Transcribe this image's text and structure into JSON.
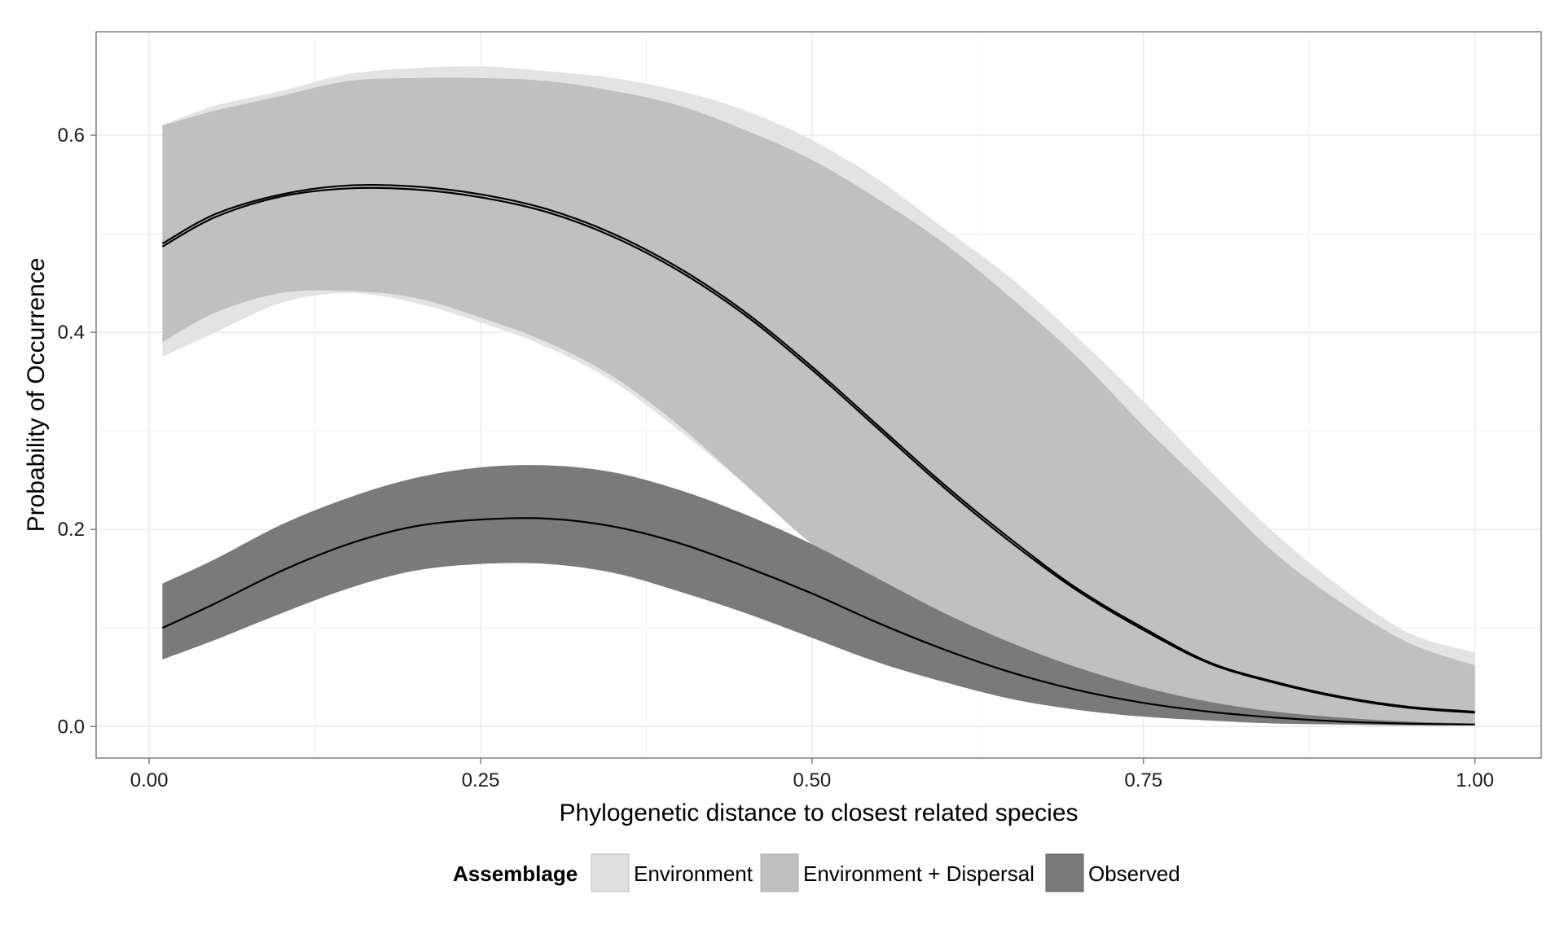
{
  "chart_data": {
    "type": "area",
    "xlabel": "Phylogenetic distance to closest related species",
    "ylabel": "Probability of Occurrence",
    "xlim": [
      -0.04,
      1.05
    ],
    "ylim": [
      -0.032,
      0.705
    ],
    "x_ticks": [
      "0.00",
      "0.25",
      "0.50",
      "0.75",
      "1.00"
    ],
    "x_tick_values": [
      0,
      0.25,
      0.5,
      0.75,
      1.0
    ],
    "y_ticks": [
      "0.0",
      "0.2",
      "0.4",
      "0.6"
    ],
    "y_tick_values": [
      0,
      0.2,
      0.4,
      0.6
    ],
    "grid": true,
    "legend": {
      "title": "Assemblage",
      "position": "bottom",
      "entries": [
        {
          "label": "Environment",
          "color": "#e0e0e0"
        },
        {
          "label": "Environment + Dispersal",
          "color": "#c0c0c0"
        },
        {
          "label": "Observed",
          "color": "#7a7a7a"
        }
      ]
    },
    "series": [
      {
        "name": "Environment",
        "fill_color": "#e3e3e3",
        "x": [
          0.01,
          0.05,
          0.1,
          0.15,
          0.2,
          0.25,
          0.3,
          0.35,
          0.4,
          0.45,
          0.5,
          0.55,
          0.6,
          0.65,
          0.7,
          0.75,
          0.8,
          0.85,
          0.9,
          0.95,
          1.0
        ],
        "mean": [
          0.49,
          0.52,
          0.54,
          0.549,
          0.548,
          0.54,
          0.525,
          0.5,
          0.465,
          0.42,
          0.365,
          0.305,
          0.245,
          0.19,
          0.14,
          0.1,
          0.065,
          0.045,
          0.03,
          0.02,
          0.015
        ],
        "lower": [
          0.375,
          0.4,
          0.43,
          0.44,
          0.43,
          0.41,
          0.385,
          0.35,
          0.3,
          0.245,
          0.185,
          0.14,
          0.095,
          0.065,
          0.045,
          0.03,
          0.018,
          0.012,
          0.007,
          0.004,
          0.003
        ],
        "upper": [
          0.61,
          0.63,
          0.645,
          0.662,
          0.668,
          0.67,
          0.665,
          0.658,
          0.645,
          0.625,
          0.595,
          0.555,
          0.505,
          0.455,
          0.395,
          0.33,
          0.26,
          0.195,
          0.14,
          0.095,
          0.075
        ]
      },
      {
        "name": "Environment + Dispersal",
        "fill_color": "#c0c0c0",
        "x": [
          0.01,
          0.05,
          0.1,
          0.15,
          0.2,
          0.25,
          0.3,
          0.35,
          0.4,
          0.45,
          0.5,
          0.55,
          0.6,
          0.65,
          0.7,
          0.75,
          0.8,
          0.85,
          0.9,
          0.95,
          1.0
        ],
        "mean": [
          0.487,
          0.517,
          0.538,
          0.546,
          0.545,
          0.537,
          0.522,
          0.497,
          0.462,
          0.417,
          0.362,
          0.302,
          0.242,
          0.187,
          0.138,
          0.098,
          0.064,
          0.044,
          0.029,
          0.019,
          0.014
        ],
        "lower": [
          0.39,
          0.42,
          0.44,
          0.442,
          0.435,
          0.415,
          0.39,
          0.355,
          0.305,
          0.245,
          0.185,
          0.14,
          0.095,
          0.065,
          0.045,
          0.03,
          0.018,
          0.012,
          0.007,
          0.004,
          0.003
        ],
        "upper": [
          0.61,
          0.625,
          0.64,
          0.655,
          0.658,
          0.658,
          0.655,
          0.645,
          0.63,
          0.605,
          0.575,
          0.535,
          0.49,
          0.435,
          0.375,
          0.305,
          0.24,
          0.175,
          0.125,
          0.085,
          0.062
        ]
      },
      {
        "name": "Observed",
        "fill_color": "#7a7a7a",
        "x": [
          0.01,
          0.05,
          0.1,
          0.15,
          0.2,
          0.25,
          0.3,
          0.35,
          0.4,
          0.45,
          0.5,
          0.55,
          0.6,
          0.65,
          0.7,
          0.75,
          0.8,
          0.85,
          0.9,
          0.95,
          1.0
        ],
        "mean": [
          0.1,
          0.125,
          0.158,
          0.185,
          0.203,
          0.21,
          0.211,
          0.203,
          0.186,
          0.162,
          0.135,
          0.105,
          0.078,
          0.055,
          0.037,
          0.024,
          0.015,
          0.009,
          0.005,
          0.003,
          0.002
        ],
        "lower": [
          0.068,
          0.088,
          0.115,
          0.14,
          0.158,
          0.165,
          0.165,
          0.156,
          0.137,
          0.115,
          0.09,
          0.065,
          0.045,
          0.028,
          0.017,
          0.01,
          0.006,
          0.003,
          0.002,
          0.001,
          0.001
        ],
        "upper": [
          0.145,
          0.17,
          0.205,
          0.232,
          0.252,
          0.263,
          0.265,
          0.258,
          0.24,
          0.215,
          0.185,
          0.15,
          0.115,
          0.085,
          0.06,
          0.04,
          0.025,
          0.015,
          0.009,
          0.005,
          0.003
        ]
      }
    ]
  }
}
